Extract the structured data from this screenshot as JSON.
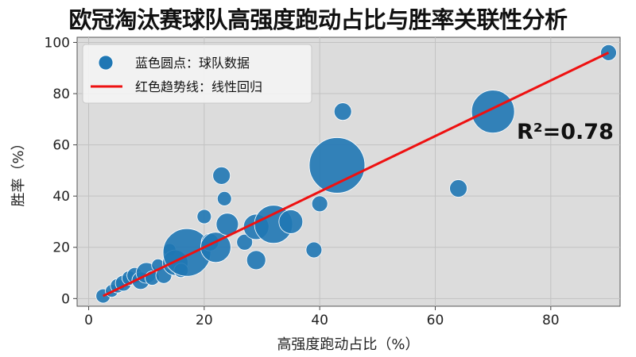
{
  "chart_data": {
    "type": "scatter",
    "title": "欧冠淘汰赛球队高强度跑动占比与胜率关联性分析",
    "xlabel": "高强度跑动占比（%）",
    "ylabel": "胜率（%）",
    "xlim": [
      -2,
      92
    ],
    "ylim": [
      -3,
      102
    ],
    "x_ticks": [
      0,
      20,
      40,
      60,
      80
    ],
    "y_ticks": [
      0,
      20,
      40,
      60,
      80,
      100
    ],
    "grid": true,
    "legend_position": "top-left",
    "legend": {
      "points_label": "蓝色圆点：球队数据",
      "trend_label": "红色趋势线：线性回归"
    },
    "annotation": "R²=0.78",
    "colors": {
      "points": "#1f77b4",
      "trend": "#ee1111",
      "background": "#dcdcdc"
    },
    "trend_line": {
      "x": [
        2.5,
        90
      ],
      "y": [
        1,
        96
      ]
    },
    "points": [
      {
        "x": 2.5,
        "y": 1,
        "r": 9
      },
      {
        "x": 4,
        "y": 3,
        "r": 8
      },
      {
        "x": 5,
        "y": 5,
        "r": 9
      },
      {
        "x": 6,
        "y": 6,
        "r": 10
      },
      {
        "x": 7,
        "y": 8,
        "r": 9
      },
      {
        "x": 8,
        "y": 9,
        "r": 10
      },
      {
        "x": 9,
        "y": 7,
        "r": 11
      },
      {
        "x": 10,
        "y": 10,
        "r": 13
      },
      {
        "x": 11,
        "y": 8,
        "r": 9
      },
      {
        "x": 12,
        "y": 13,
        "r": 8
      },
      {
        "x": 13,
        "y": 9,
        "r": 10
      },
      {
        "x": 14,
        "y": 19,
        "r": 8
      },
      {
        "x": 15,
        "y": 14,
        "r": 16
      },
      {
        "x": 16,
        "y": 11,
        "r": 9
      },
      {
        "x": 17,
        "y": 18,
        "r": 30
      },
      {
        "x": 20,
        "y": 32,
        "r": 9
      },
      {
        "x": 21,
        "y": 22,
        "r": 11
      },
      {
        "x": 22,
        "y": 20,
        "r": 19
      },
      {
        "x": 23,
        "y": 48,
        "r": 11
      },
      {
        "x": 23.5,
        "y": 39,
        "r": 9
      },
      {
        "x": 24,
        "y": 29,
        "r": 14
      },
      {
        "x": 27,
        "y": 22,
        "r": 10
      },
      {
        "x": 29,
        "y": 15,
        "r": 12
      },
      {
        "x": 29,
        "y": 28,
        "r": 16
      },
      {
        "x": 32,
        "y": 29,
        "r": 24
      },
      {
        "x": 35,
        "y": 30,
        "r": 15
      },
      {
        "x": 39,
        "y": 19,
        "r": 10
      },
      {
        "x": 40,
        "y": 37,
        "r": 10
      },
      {
        "x": 43,
        "y": 52,
        "r": 35
      },
      {
        "x": 44,
        "y": 73,
        "r": 11
      },
      {
        "x": 64,
        "y": 43,
        "r": 11
      },
      {
        "x": 70,
        "y": 73,
        "r": 27
      },
      {
        "x": 90,
        "y": 96,
        "r": 10
      }
    ]
  }
}
